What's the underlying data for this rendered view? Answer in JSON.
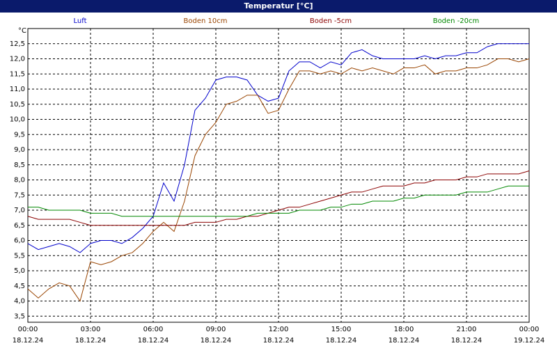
{
  "chart_data": {
    "type": "line",
    "title": "Temperatur [°C]",
    "y_label": "°C",
    "x": [
      0,
      0.5,
      1,
      1.5,
      2,
      2.5,
      3,
      3.5,
      4,
      4.5,
      5,
      5.5,
      6,
      6.5,
      7,
      7.5,
      8,
      8.5,
      9,
      9.5,
      10,
      10.5,
      11,
      11.5,
      12,
      12.5,
      13,
      13.5,
      14,
      14.5,
      15,
      15.5,
      16,
      16.5,
      17,
      17.5,
      18,
      18.5,
      19,
      19.5,
      20,
      20.5,
      21,
      21.5,
      22,
      22.5,
      23,
      23.5,
      24
    ],
    "series": [
      {
        "name": "Luft",
        "color": "#0000cc",
        "values": [
          5.9,
          5.7,
          5.8,
          5.9,
          5.8,
          5.6,
          5.9,
          6.0,
          6.0,
          5.9,
          6.1,
          6.4,
          6.8,
          7.9,
          7.3,
          8.5,
          10.3,
          10.7,
          11.3,
          11.4,
          11.4,
          11.3,
          10.8,
          10.6,
          10.7,
          11.6,
          11.9,
          11.9,
          11.7,
          11.9,
          11.8,
          12.2,
          12.3,
          12.1,
          12.0,
          12.0,
          12.0,
          12.0,
          12.1,
          12.0,
          12.1,
          12.1,
          12.2,
          12.2,
          12.4,
          12.5,
          12.5,
          12.5,
          12.5
        ]
      },
      {
        "name": "Boden 10cm",
        "color": "#994400",
        "values": [
          4.4,
          4.1,
          4.4,
          4.6,
          4.5,
          4.0,
          5.3,
          5.2,
          5.3,
          5.5,
          5.6,
          5.9,
          6.3,
          6.6,
          6.3,
          7.3,
          8.8,
          9.5,
          9.9,
          10.5,
          10.6,
          10.8,
          10.8,
          10.2,
          10.3,
          11.0,
          11.6,
          11.6,
          11.5,
          11.6,
          11.5,
          11.7,
          11.6,
          11.7,
          11.6,
          11.5,
          11.7,
          11.7,
          11.8,
          11.5,
          11.6,
          11.6,
          11.7,
          11.7,
          11.8,
          12.0,
          12.0,
          11.9,
          12.0
        ]
      },
      {
        "name": "Boden -5cm",
        "color": "#8b0000",
        "values": [
          6.8,
          6.7,
          6.7,
          6.7,
          6.7,
          6.6,
          6.5,
          6.5,
          6.5,
          6.5,
          6.5,
          6.5,
          6.5,
          6.5,
          6.5,
          6.5,
          6.6,
          6.6,
          6.6,
          6.7,
          6.7,
          6.8,
          6.8,
          6.9,
          7.0,
          7.1,
          7.1,
          7.2,
          7.3,
          7.4,
          7.5,
          7.6,
          7.6,
          7.7,
          7.8,
          7.8,
          7.8,
          7.9,
          7.9,
          8.0,
          8.0,
          8.0,
          8.1,
          8.1,
          8.2,
          8.2,
          8.2,
          8.2,
          8.3
        ]
      },
      {
        "name": "Boden -20cm",
        "color": "#008800",
        "values": [
          7.1,
          7.1,
          7.0,
          7.0,
          7.0,
          7.0,
          6.9,
          6.9,
          6.9,
          6.8,
          6.8,
          6.8,
          6.8,
          6.8,
          6.8,
          6.8,
          6.8,
          6.8,
          6.8,
          6.8,
          6.8,
          6.8,
          6.9,
          6.9,
          6.9,
          6.9,
          7.0,
          7.0,
          7.0,
          7.1,
          7.1,
          7.2,
          7.2,
          7.3,
          7.3,
          7.3,
          7.4,
          7.4,
          7.5,
          7.5,
          7.5,
          7.5,
          7.6,
          7.6,
          7.6,
          7.7,
          7.8,
          7.8,
          7.8
        ]
      }
    ],
    "xlim": [
      0,
      24
    ],
    "xticks": [
      {
        "value": 0,
        "label": "00:00"
      },
      {
        "value": 3,
        "label": "03:00"
      },
      {
        "value": 6,
        "label": "06:00"
      },
      {
        "value": 9,
        "label": "09:00"
      },
      {
        "value": 12,
        "label": "12:00"
      },
      {
        "value": 15,
        "label": "15:00"
      },
      {
        "value": 18,
        "label": "18:00"
      },
      {
        "value": 21,
        "label": "21:00"
      },
      {
        "value": 24,
        "label": "00:00"
      }
    ],
    "xtick_dates": [
      "18.12.24",
      "18.12.24",
      "18.12.24",
      "18.12.24",
      "18.12.24",
      "18.12.24",
      "18.12.24",
      "18.12.24",
      "19.12.24"
    ],
    "ylim": [
      3.3,
      13.0
    ],
    "yticks": [
      {
        "value": 3.5,
        "label": "3,5"
      },
      {
        "value": 4,
        "label": "4,0"
      },
      {
        "value": 4.5,
        "label": "4,5"
      },
      {
        "value": 5,
        "label": "5,0"
      },
      {
        "value": 5.5,
        "label": "5,5"
      },
      {
        "value": 6,
        "label": "6,0"
      },
      {
        "value": 6.5,
        "label": "6,5"
      },
      {
        "value": 7,
        "label": "7,0"
      },
      {
        "value": 7.5,
        "label": "7,5"
      },
      {
        "value": 8,
        "label": "8,0"
      },
      {
        "value": 8.5,
        "label": "8,5"
      },
      {
        "value": 9,
        "label": "9,0"
      },
      {
        "value": 9.5,
        "label": "9,5"
      },
      {
        "value": 10,
        "label": "10,0"
      },
      {
        "value": 10.5,
        "label": "10,5"
      },
      {
        "value": 11,
        "label": "11,0"
      },
      {
        "value": 11.5,
        "label": "11,5"
      },
      {
        "value": 12,
        "label": "12,0"
      },
      {
        "value": 12.5,
        "label": "12,5"
      }
    ],
    "grid": true
  }
}
